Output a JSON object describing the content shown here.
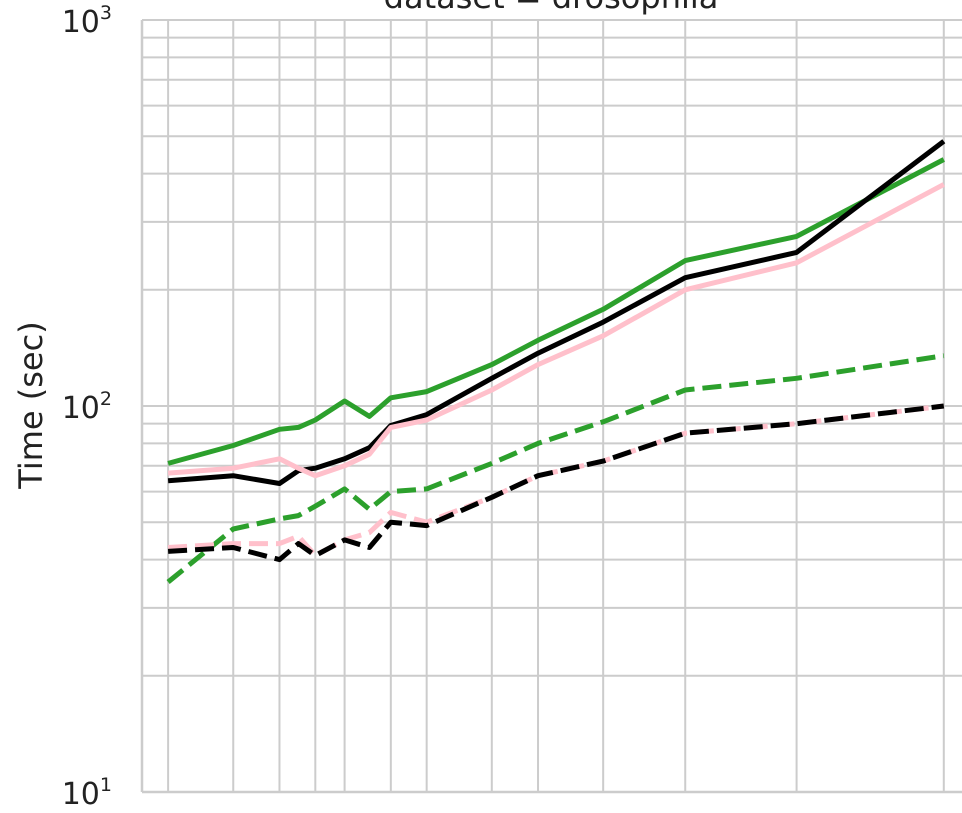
{
  "chart_data": {
    "type": "line",
    "title": "dataset = drosophila",
    "xlabel": "",
    "ylabel": "Time (sec)",
    "yscale": "log",
    "ylim": [
      10,
      1000
    ],
    "xscale": "log",
    "xlim": [
      1.7,
      280
    ],
    "grid": true,
    "legend": "none",
    "ytick_labels": [
      {
        "base": "10",
        "exp": "1",
        "value": 10
      },
      {
        "base": "10",
        "exp": "2",
        "value": 100
      },
      {
        "base": "10",
        "exp": "3",
        "value": 1000
      }
    ],
    "x_gridlines": [
      2,
      3,
      4,
      5,
      6,
      8,
      10,
      15,
      20,
      30,
      50,
      100,
      250
    ],
    "x": [
      2,
      3,
      4,
      4.5,
      5,
      6,
      7,
      8,
      10,
      15,
      20,
      30,
      50,
      100,
      250
    ],
    "series": [
      {
        "color": "#2ca02c",
        "style": "solid",
        "values": [
          71,
          79,
          87,
          88,
          92,
          103,
          94,
          105,
          109,
          128,
          148,
          178,
          238,
          275,
          435
        ]
      },
      {
        "color": "#000000",
        "style": "solid",
        "values": [
          64,
          66,
          63,
          68,
          69,
          73,
          78,
          89,
          95,
          118,
          137,
          165,
          215,
          250,
          485
        ]
      },
      {
        "color": "#ffc0cb",
        "style": "solid",
        "values": [
          67,
          69,
          73,
          69,
          66,
          70,
          75,
          88,
          92,
          110,
          128,
          152,
          200,
          235,
          375
        ]
      },
      {
        "color": "#2ca02c",
        "style": "dashed",
        "values": [
          35,
          48,
          51,
          52,
          55,
          61,
          54,
          60,
          61,
          71,
          80,
          91,
          110,
          118,
          135
        ]
      },
      {
        "color": "#ffc0cb",
        "style": "dashed",
        "values": [
          43,
          44,
          44,
          46,
          41,
          45,
          47,
          53,
          50,
          58,
          66,
          72,
          85,
          90,
          100
        ]
      },
      {
        "color": "#000000",
        "style": "dashed",
        "values": [
          42,
          43,
          40,
          44,
          41,
          45,
          43,
          50,
          49,
          58,
          66,
          72,
          85,
          90,
          100
        ]
      }
    ]
  }
}
